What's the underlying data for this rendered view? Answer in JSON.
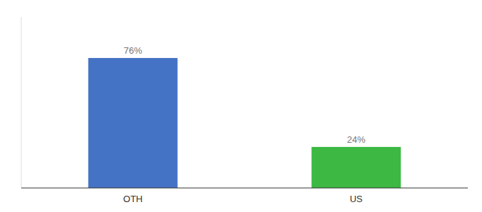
{
  "chart_data": {
    "type": "bar",
    "categories": [
      "OTH",
      "US"
    ],
    "values": [
      76,
      24
    ],
    "value_labels": [
      "76%",
      "24%"
    ],
    "colors": [
      "#4472c4",
      "#3cb843"
    ],
    "ylim": [
      0,
      100
    ],
    "data_labels": true,
    "tick_labels": "x",
    "grid": false
  }
}
